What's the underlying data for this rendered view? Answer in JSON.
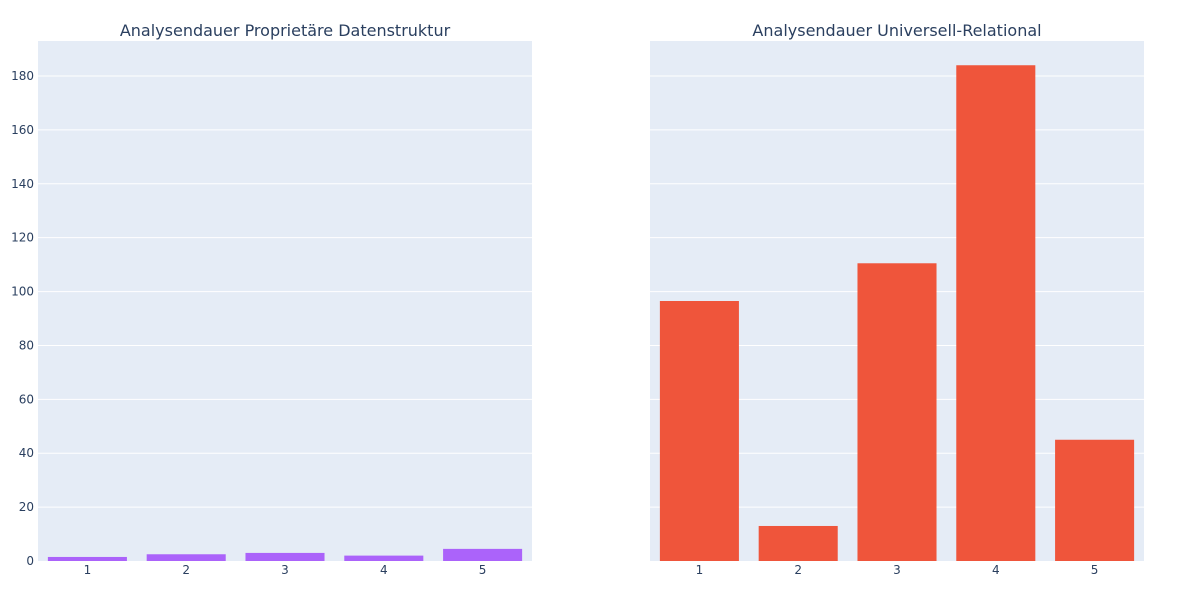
{
  "chart_data": [
    {
      "type": "bar",
      "title": "Analysendauer Proprietäre Datenstruktur",
      "categories": [
        "1",
        "2",
        "3",
        "4",
        "5"
      ],
      "values": [
        1.5,
        2.5,
        3.0,
        2.0,
        4.5
      ],
      "ylim": [
        0,
        193
      ],
      "yticks": [
        0,
        20,
        40,
        60,
        80,
        100,
        120,
        140,
        160,
        180
      ],
      "show_y_tick_labels": true,
      "grid": true,
      "color": "#ab63fa"
    },
    {
      "type": "bar",
      "title": "Analysendauer Universell-Relational",
      "categories": [
        "1",
        "2",
        "3",
        "4",
        "5"
      ],
      "values": [
        96.5,
        13.0,
        110.5,
        184.0,
        45.0
      ],
      "ylim": [
        0,
        193
      ],
      "yticks": [
        0,
        20,
        40,
        60,
        80,
        100,
        120,
        140,
        160,
        180
      ],
      "show_y_tick_labels": false,
      "grid": true,
      "color": "#ef553b"
    }
  ],
  "background_color": "#e5ecf6"
}
